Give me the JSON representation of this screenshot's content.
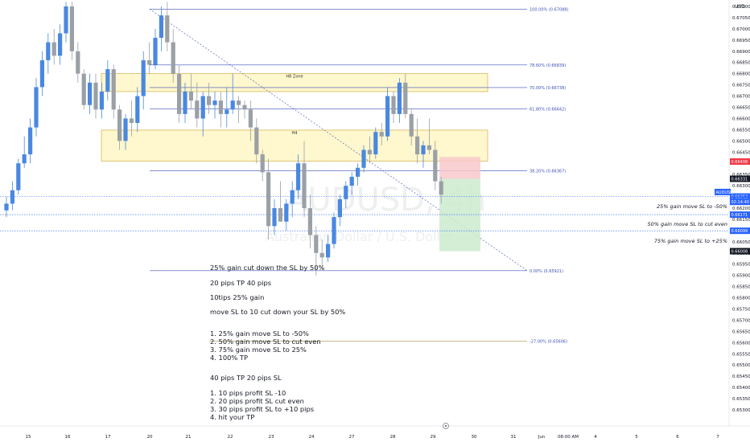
{
  "chart_data": {
    "type": "candlestick",
    "symbol": "AUDUSD, 4h",
    "description": "Australian Dollar / U.S. Dollar",
    "currency": "USD",
    "ylim": [
      0.6528,
      0.6714
    ],
    "y_ticks": [
      "0.67100",
      "0.67050",
      "0.67000",
      "0.66950",
      "0.66900",
      "0.66850",
      "0.66800",
      "0.66750",
      "0.66700",
      "0.66650",
      "0.66600",
      "0.66550",
      "0.66500",
      "0.66450",
      "0.66400",
      "0.66350",
      "0.66300",
      "0.66250",
      "0.66200",
      "0.66150",
      "0.66100",
      "0.66050",
      "0.66000",
      "0.65950",
      "0.65900",
      "0.65850",
      "0.65800",
      "0.65750",
      "0.65700",
      "0.65650",
      "0.65600",
      "0.65550",
      "0.65500",
      "0.65450",
      "0.65400",
      "0.65350",
      "0.65300"
    ],
    "x_ticks": [
      "15",
      "16",
      "17",
      "20",
      "21",
      "22",
      "23",
      "24",
      "27",
      "28",
      "29",
      "30",
      "31",
      "Jun",
      "08:00 AM",
      "4",
      "5",
      "6",
      "7"
    ],
    "candles": [
      [
        0.6619,
        0.6625,
        0.6616,
        0.6622
      ],
      [
        0.6622,
        0.6632,
        0.6619,
        0.6628
      ],
      [
        0.6628,
        0.6642,
        0.6626,
        0.664
      ],
      [
        0.664,
        0.6652,
        0.6638,
        0.6644
      ],
      [
        0.6644,
        0.666,
        0.664,
        0.6656
      ],
      [
        0.6656,
        0.6678,
        0.6652,
        0.6674
      ],
      [
        0.6674,
        0.669,
        0.667,
        0.6686
      ],
      [
        0.6686,
        0.6698,
        0.668,
        0.6694
      ],
      [
        0.6694,
        0.67,
        0.6684,
        0.6688
      ],
      [
        0.6688,
        0.6702,
        0.6684,
        0.6698
      ],
      [
        0.6698,
        0.6712,
        0.6694,
        0.671
      ],
      [
        0.671,
        0.6712,
        0.6686,
        0.669
      ],
      [
        0.669,
        0.6694,
        0.6676,
        0.668
      ],
      [
        0.668,
        0.6682,
        0.6664,
        0.6666
      ],
      [
        0.6666,
        0.668,
        0.6662,
        0.6676
      ],
      [
        0.6676,
        0.668,
        0.666,
        0.6664
      ],
      [
        0.6664,
        0.6676,
        0.666,
        0.6672
      ],
      [
        0.6672,
        0.6686,
        0.6668,
        0.6682
      ],
      [
        0.6682,
        0.6684,
        0.666,
        0.6664
      ],
      [
        0.6664,
        0.6666,
        0.6646,
        0.665
      ],
      [
        0.665,
        0.6662,
        0.6646,
        0.666
      ],
      [
        0.666,
        0.6668,
        0.6652,
        0.6658
      ],
      [
        0.6658,
        0.6674,
        0.6654,
        0.667
      ],
      [
        0.667,
        0.669,
        0.6664,
        0.6686
      ],
      [
        0.6686,
        0.6694,
        0.668,
        0.6684
      ],
      [
        0.6684,
        0.67,
        0.6682,
        0.6696
      ],
      [
        0.6696,
        0.671,
        0.669,
        0.6706
      ],
      [
        0.6706,
        0.6712,
        0.669,
        0.6694
      ],
      [
        0.6694,
        0.67,
        0.6676,
        0.668
      ],
      [
        0.668,
        0.6684,
        0.6658,
        0.6662
      ],
      [
        0.6662,
        0.6676,
        0.6658,
        0.6672
      ],
      [
        0.6672,
        0.668,
        0.6664,
        0.6668
      ],
      [
        0.6668,
        0.6676,
        0.6656,
        0.666
      ],
      [
        0.666,
        0.6672,
        0.6652,
        0.667
      ],
      [
        0.667,
        0.6676,
        0.6662,
        0.6666
      ],
      [
        0.6666,
        0.6672,
        0.666,
        0.6668
      ],
      [
        0.6668,
        0.6672,
        0.6656,
        0.6662
      ],
      [
        0.6662,
        0.6674,
        0.6656,
        0.6664
      ],
      [
        0.6664,
        0.668,
        0.6662,
        0.6668
      ],
      [
        0.6668,
        0.667,
        0.6658,
        0.6666
      ],
      [
        0.6666,
        0.6668,
        0.666,
        0.6664
      ],
      [
        0.6664,
        0.6668,
        0.665,
        0.6656
      ],
      [
        0.6656,
        0.666,
        0.664,
        0.6644
      ],
      [
        0.6644,
        0.6646,
        0.6632,
        0.6636
      ],
      [
        0.6636,
        0.6642,
        0.6606,
        0.6612
      ],
      [
        0.6612,
        0.6624,
        0.6608,
        0.662
      ],
      [
        0.662,
        0.6632,
        0.6614,
        0.6614
      ],
      [
        0.6614,
        0.6624,
        0.661,
        0.6622
      ],
      [
        0.6622,
        0.6632,
        0.6616,
        0.6628
      ],
      [
        0.6628,
        0.6644,
        0.6624,
        0.664
      ],
      [
        0.664,
        0.665,
        0.6616,
        0.662
      ],
      [
        0.662,
        0.6626,
        0.6602,
        0.6608
      ],
      [
        0.6608,
        0.6612,
        0.659,
        0.66
      ],
      [
        0.66,
        0.6606,
        0.6593,
        0.6598
      ],
      [
        0.6598,
        0.6608,
        0.6596,
        0.6604
      ],
      [
        0.6604,
        0.6618,
        0.6602,
        0.6616
      ],
      [
        0.6616,
        0.6626,
        0.6612,
        0.6624
      ],
      [
        0.6624,
        0.6632,
        0.662,
        0.663
      ],
      [
        0.663,
        0.6636,
        0.6626,
        0.6634
      ],
      [
        0.6634,
        0.664,
        0.663,
        0.6638
      ],
      [
        0.6638,
        0.6648,
        0.6636,
        0.6646
      ],
      [
        0.6646,
        0.6652,
        0.664,
        0.6644
      ],
      [
        0.6644,
        0.6656,
        0.6642,
        0.6654
      ],
      [
        0.6654,
        0.6658,
        0.6648,
        0.6652
      ],
      [
        0.6652,
        0.6674,
        0.665,
        0.667
      ],
      [
        0.667,
        0.6672,
        0.6658,
        0.6662
      ],
      [
        0.6662,
        0.6678,
        0.6658,
        0.6676
      ],
      [
        0.6676,
        0.668,
        0.666,
        0.6662
      ],
      [
        0.6662,
        0.6664,
        0.6648,
        0.6652
      ],
      [
        0.6652,
        0.666,
        0.664,
        0.6644
      ],
      [
        0.6644,
        0.665,
        0.6638,
        0.6648
      ],
      [
        0.6648,
        0.666,
        0.6644,
        0.6646
      ],
      [
        0.6646,
        0.665,
        0.6628,
        0.6632
      ],
      [
        0.6632,
        0.6634,
        0.6622,
        0.6626
      ]
    ],
    "fib_levels": [
      {
        "label": "100.00% (0.67088)",
        "price": 0.67088
      },
      {
        "label": "78.60% (0.66839)",
        "price": 0.66839
      },
      {
        "label": "70.00% (0.66738)",
        "price": 0.66738
      },
      {
        "label": "61.80% (0.66642)",
        "price": 0.66642
      },
      {
        "label": "38.20% (0.66367)",
        "price": 0.66367
      },
      {
        "label": "0.00% (0.65921)",
        "price": 0.65921
      },
      {
        "label": "-27.00% (0.65606)",
        "price": 0.65606
      }
    ],
    "zones": [
      {
        "label": "H8 Zone",
        "top": 0.668,
        "bottom": 0.6672
      },
      {
        "label": "H4",
        "top": 0.66548,
        "bottom": 0.6641
      }
    ],
    "position": {
      "entry": 0.66331,
      "stop": 0.664,
      "target": 0.66008
    },
    "horizontal_lines": [
      0.66252,
      0.66171,
      0.66099
    ],
    "price_tags": [
      {
        "text": "0.66408",
        "price": 0.66408,
        "color": "#f23645"
      },
      {
        "text": "0.66331",
        "price": 0.66331,
        "color": "#131722"
      },
      {
        "text": "0.66252",
        "price": 0.66252,
        "color": "#2962ff"
      },
      {
        "text": "AUDUSD",
        "price": 0.66272,
        "color": "#2962ff"
      },
      {
        "text": "0.66248",
        "price": 0.66238,
        "color": "#2962ff"
      },
      {
        "text": "02:14:40",
        "price": 0.66228,
        "color": "#2962ff"
      },
      {
        "text": "0.66171",
        "price": 0.66171,
        "color": "#2962ff"
      },
      {
        "text": "0.66099",
        "price": 0.66099,
        "color": "#2962ff"
      },
      {
        "text": "0.66008",
        "price": 0.66008,
        "color": "#131722"
      }
    ]
  },
  "right_notes": [
    "25% gain move SL to -50%",
    "50% gain move SL to cut even",
    "75% gain move SL to +25%"
  ],
  "notes": [
    "25% gain cut down the SL by 50%",
    "20 pips TP 40 pips",
    "10tips 25% gain",
    "move SL to 10 cut down your SL by 50%",
    "1. 25% gain move SL to -50%",
    "2. 50% gain move SL to cut even",
    "3. 75% gain move SL to 25%",
    "4. 100% TP",
    "40 pips TP 20 pips SL",
    "1. 10 pips profit SL -10",
    "2. 20 pips profit SL cut even",
    "3. 30 pips profit SL to +10 pips",
    "4. hit your TP"
  ],
  "colors": {
    "up": "#4a88e0",
    "down": "#9aa0a6",
    "fib": "#3f51b5",
    "zone_fill": "#fff6c8",
    "zone_stroke": "#c9a227",
    "stop_fill": "#f9c9cb",
    "target_fill": "#cdebcf"
  }
}
